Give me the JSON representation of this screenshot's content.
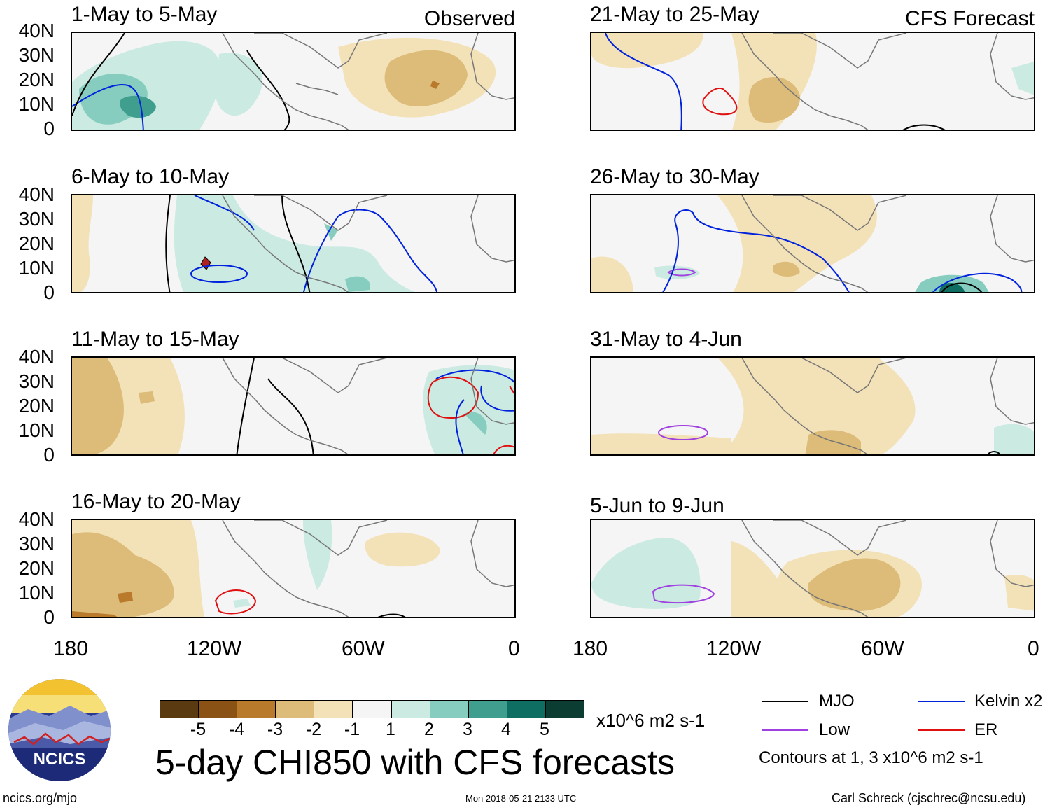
{
  "header": {
    "left_tag": "Observed",
    "right_tag": "CFS Forecast"
  },
  "axis": {
    "y_ticks": [
      "40N",
      "30N",
      "20N",
      "10N",
      "0"
    ],
    "x_ticks": [
      "180",
      "120W",
      "60W",
      "0"
    ]
  },
  "panels": {
    "left": [
      {
        "title": "1-May to 5-May"
      },
      {
        "title": "6-May to 10-May"
      },
      {
        "title": "11-May to 15-May"
      },
      {
        "title": "16-May to 20-May"
      }
    ],
    "right": [
      {
        "title": "21-May to 25-May"
      },
      {
        "title": "26-May to 30-May"
      },
      {
        "title": "31-May to 4-Jun"
      },
      {
        "title": "5-Jun to 9-Jun"
      }
    ]
  },
  "colorbar": {
    "colors": [
      "#5a3a10",
      "#8a5214",
      "#b97a2b",
      "#dcbc78",
      "#f3e2b8",
      "#f5f5f5",
      "#cbeae2",
      "#86cdbf",
      "#3f9e8e",
      "#0f6e62",
      "#0b3d33"
    ],
    "labels": [
      "-5",
      "-4",
      "-3",
      "-2",
      "-1",
      "1",
      "2",
      "3",
      "4",
      "5"
    ],
    "units": "x10^6 m2 s-1"
  },
  "title": "5-day CHI850 with CFS forecasts",
  "legend": {
    "items": [
      {
        "label": "MJO",
        "color": "#000000"
      },
      {
        "label": "Kelvin x2",
        "color": "#0022dd"
      },
      {
        "label": "Low",
        "color": "#a040e0"
      },
      {
        "label": "ER",
        "color": "#e01010"
      }
    ],
    "note": "Contours at 1, 3 x10^6 m2 s-1"
  },
  "logo": {
    "text": "NCICS"
  },
  "footer": {
    "left": "ncics.org/mjo",
    "center": "Mon 2018-05-21 2133 UTC",
    "right": "Carl Schreck (cjschrec@ncsu.edu)"
  }
}
